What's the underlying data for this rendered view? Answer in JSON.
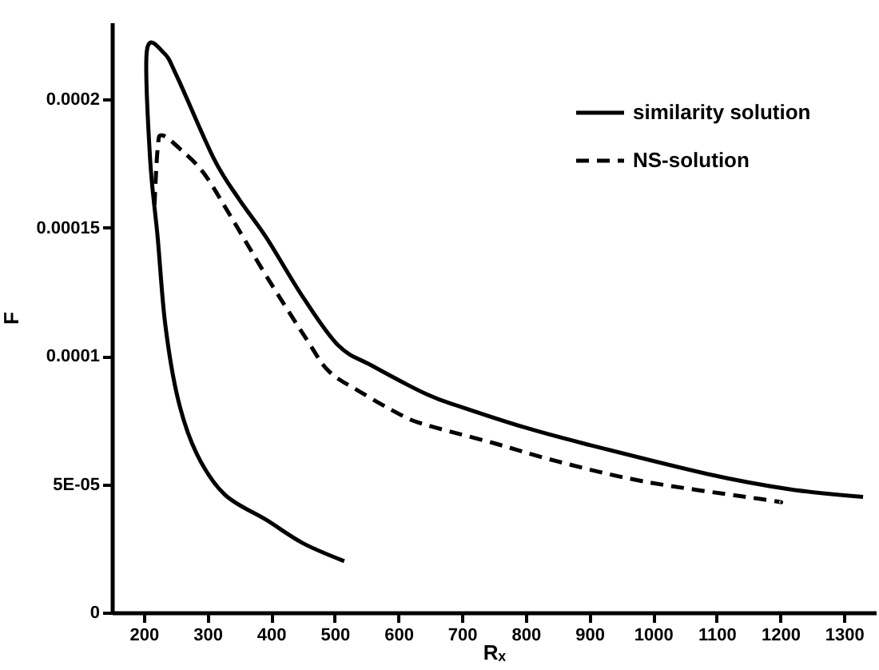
{
  "chart_data": {
    "type": "line",
    "xlabel": "Rₓ",
    "ylabel": "F",
    "xlim": [
      150,
      1350
    ],
    "ylim": [
      0,
      0.00023
    ],
    "xticks": [
      200,
      300,
      400,
      500,
      600,
      700,
      800,
      900,
      1000,
      1100,
      1200,
      1300
    ],
    "yticks": [
      0,
      {
        "value": 5e-05,
        "label": "5E-05"
      },
      0.0001,
      0.00015,
      0.0002
    ],
    "grid": false,
    "legend": "top right",
    "marker": "none",
    "series": [
      {
        "name": "similarity solution",
        "color": "#000000",
        "line_style": "solid",
        "x": [
          515,
          450,
          393,
          327,
          283,
          254,
          234,
          222,
          210,
          205,
          232,
          254,
          310,
          350,
          393,
          450,
          506,
          560,
          645,
          700,
          800,
          889,
          1085,
          1215,
          1330
        ],
        "values": [
          2e-05,
          2.7e-05,
          3.6e-05,
          4.6e-05,
          6.2e-05,
          8.3e-05,
          0.000112,
          0.000146,
          0.000177,
          0.000219,
          0.000218,
          0.000208,
          0.000177,
          0.000161,
          0.000146,
          0.000123,
          0.000104,
          9.6e-05,
          8.5e-05,
          8e-05,
          7.2e-05,
          6.6e-05,
          5.4e-05,
          4.8e-05,
          4.5e-05
        ]
      },
      {
        "name": "NS-solution",
        "color": "#000000",
        "line_style": "dashed",
        "x": [
          217,
          222,
          229,
          260,
          295,
          340,
          393,
          457,
          491,
          540,
          604,
          645,
          750,
          848,
          987,
          1175,
          1200
        ],
        "values": [
          0.000159,
          0.000181,
          0.000186,
          0.00018,
          0.000171,
          0.000153,
          0.000131,
          0.000106,
          9.4e-05,
          8.6e-05,
          7.7e-05,
          7.3e-05,
          6.6e-05,
          5.9e-05,
          5.1e-05,
          4.4e-05,
          4.3e-05
        ]
      }
    ]
  }
}
